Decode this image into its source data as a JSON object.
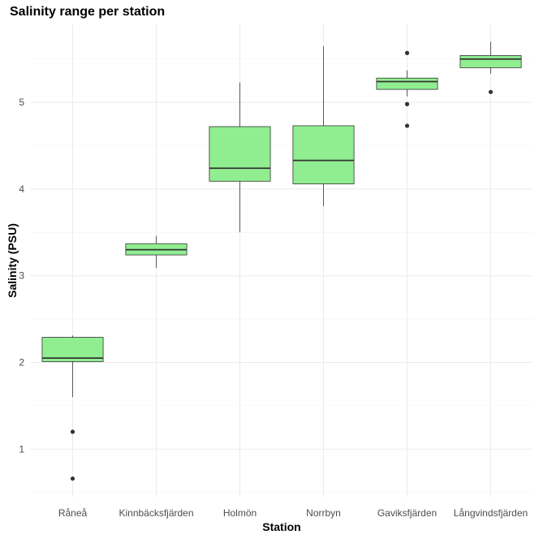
{
  "chart_data": {
    "type": "box",
    "title": "Salinity range per station",
    "xlabel": "Station",
    "ylabel": "Salinity (PSU)",
    "ylim": [
      0.45,
      5.9
    ],
    "yticks": [
      1,
      2,
      3,
      4,
      5
    ],
    "grid": true,
    "box_color": "#90ee90",
    "line_color": "#333333",
    "categories": [
      "Råneå",
      "Kinnbäcksfjärden",
      "Holmön",
      "Norrbyn",
      "Gaviksfjärden",
      "Långvindsfjärden"
    ],
    "series": [
      {
        "category": "Råneå",
        "whisker_low": 1.6,
        "q1": 2.01,
        "median": 2.05,
        "q3": 2.29,
        "whisker_high": 2.31,
        "outliers": [
          1.2,
          0.66
        ]
      },
      {
        "category": "Kinnbäcksfjärden",
        "whisker_low": 3.09,
        "q1": 3.24,
        "median": 3.3,
        "q3": 3.37,
        "whisker_high": 3.46,
        "outliers": []
      },
      {
        "category": "Holmön",
        "whisker_low": 3.5,
        "q1": 4.09,
        "median": 4.24,
        "q3": 4.72,
        "whisker_high": 5.23,
        "outliers": []
      },
      {
        "category": "Norrbyn",
        "whisker_low": 3.8,
        "q1": 4.06,
        "median": 4.33,
        "q3": 4.73,
        "whisker_high": 5.65,
        "outliers": []
      },
      {
        "category": "Gaviksfjärden",
        "whisker_low": 5.07,
        "q1": 5.15,
        "median": 5.24,
        "q3": 5.28,
        "whisker_high": 5.37,
        "outliers": [
          5.57,
          4.98,
          4.73
        ]
      },
      {
        "category": "Långvindsfjärden",
        "whisker_low": 5.33,
        "q1": 5.4,
        "median": 5.5,
        "q3": 5.54,
        "whisker_high": 5.7,
        "outliers": [
          5.12
        ]
      }
    ]
  }
}
